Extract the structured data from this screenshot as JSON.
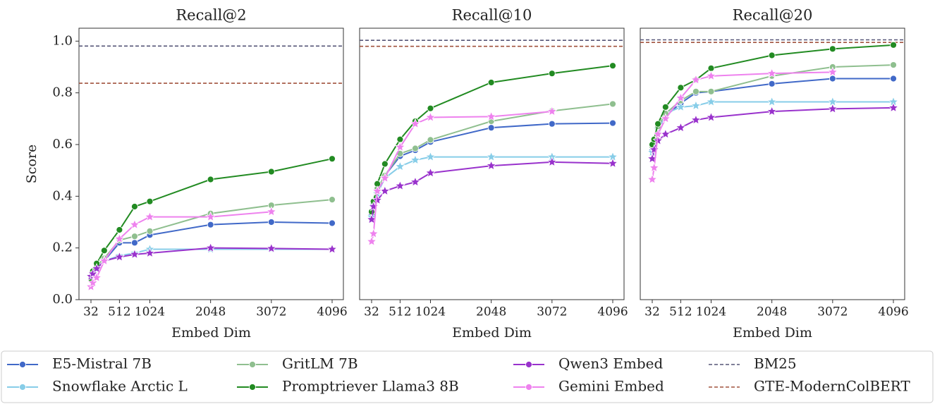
{
  "chart_data": [
    {
      "type": "line",
      "title": "Recall@2",
      "xlabel": "Embed Dim",
      "ylabel": "Score",
      "x": [
        32,
        64,
        128,
        256,
        512,
        768,
        1024,
        2048,
        3072,
        4096
      ],
      "xlim": [
        -170,
        4286
      ],
      "xticks": [
        32,
        512,
        1024,
        2048,
        3072,
        4096
      ],
      "ylim": [
        0,
        1.05
      ],
      "yticks": [
        {
          "value": 0,
          "label": "0.0"
        },
        0.2,
        0.4,
        0.6,
        0.8,
        {
          "value": 1,
          "label": "1.0"
        }
      ],
      "series": [
        {
          "name": "E5-Mistral 7B",
          "color": "#4169c8",
          "marker": "circle",
          "values": [
            0.08,
            0.1,
            0.12,
            0.15,
            0.22,
            0.22,
            0.25,
            0.29,
            0.3,
            0.296
          ]
        },
        {
          "name": "Snowflake Arctic L",
          "color": "#87cde8",
          "marker": "star",
          "values": [
            0.09,
            0.1,
            0.12,
            0.15,
            0.17,
            0.18,
            0.195,
            0.195,
            0.195,
            0.195
          ]
        },
        {
          "name": "GritLM 7B",
          "color": "#8fbf8f",
          "marker": "circle",
          "values": [
            0.08,
            0.1,
            0.13,
            0.16,
            0.23,
            0.245,
            0.265,
            0.333,
            0.365,
            0.387
          ]
        },
        {
          "name": "Promptriever Llama3 8B",
          "color": "#228b22",
          "marker": "circle",
          "values": [
            0.08,
            0.11,
            0.14,
            0.19,
            0.27,
            0.36,
            0.38,
            0.465,
            0.495,
            0.545
          ]
        },
        {
          "name": "Qwen3 Embed",
          "color": "#9932cc",
          "marker": "star",
          "values": [
            0.09,
            0.1,
            0.12,
            0.15,
            0.165,
            0.175,
            0.18,
            0.2,
            0.198,
            0.195
          ]
        },
        {
          "name": "Gemini Embed",
          "color": "#ee82ee",
          "marker": "star",
          "values": [
            0.05,
            0.065,
            0.085,
            0.15,
            0.235,
            0.29,
            0.32,
            0.32,
            0.34,
            null
          ]
        }
      ],
      "reference_lines": [
        {
          "name": "BM25",
          "color": "#555577",
          "value": 0.981
        },
        {
          "name": "GTE-ModernColBERT",
          "color": "#a0523d",
          "value": 0.837
        }
      ]
    },
    {
      "type": "line",
      "title": "Recall@10",
      "xlabel": "Embed Dim",
      "x": [
        32,
        64,
        128,
        256,
        512,
        768,
        1024,
        2048,
        3072,
        4096
      ],
      "xlim": [
        -170,
        4286
      ],
      "xticks": [
        32,
        512,
        1024,
        2048,
        3072,
        4096
      ],
      "ylim": [
        0,
        1.05
      ],
      "series": [
        {
          "name": "E5-Mistral 7B",
          "color": "#4169c8",
          "marker": "circle",
          "values": [
            0.33,
            0.37,
            0.42,
            0.48,
            0.555,
            0.578,
            0.61,
            0.665,
            0.68,
            0.683
          ]
        },
        {
          "name": "Snowflake Arctic L",
          "color": "#87cde8",
          "marker": "star",
          "values": [
            0.32,
            0.36,
            0.41,
            0.47,
            0.515,
            0.54,
            0.552,
            0.552,
            0.552,
            0.552
          ]
        },
        {
          "name": "GritLM 7B",
          "color": "#8fbf8f",
          "marker": "circle",
          "values": [
            0.34,
            0.38,
            0.43,
            0.48,
            0.565,
            0.585,
            0.618,
            0.69,
            0.73,
            0.757
          ]
        },
        {
          "name": "Promptriever Llama3 8B",
          "color": "#228b22",
          "marker": "circle",
          "values": [
            0.34,
            0.38,
            0.448,
            0.525,
            0.62,
            0.69,
            0.74,
            0.84,
            0.875,
            0.905
          ]
        },
        {
          "name": "Qwen3 Embed",
          "color": "#9932cc",
          "marker": "star",
          "values": [
            0.31,
            0.36,
            0.385,
            0.42,
            0.44,
            0.455,
            0.49,
            0.518,
            0.532,
            0.527
          ]
        },
        {
          "name": "Gemini Embed",
          "color": "#ee82ee",
          "marker": "star",
          "values": [
            0.225,
            0.255,
            0.42,
            0.47,
            0.59,
            0.68,
            0.705,
            0.708,
            0.728,
            null
          ]
        }
      ],
      "reference_lines": [
        {
          "name": "BM25",
          "color": "#555577",
          "value": 1.003
        },
        {
          "name": "GTE-ModernColBERT",
          "color": "#a0523d",
          "value": 0.98
        }
      ]
    },
    {
      "type": "line",
      "title": "Recall@20",
      "xlabel": "Embed Dim",
      "x": [
        32,
        64,
        128,
        256,
        512,
        768,
        1024,
        2048,
        3072,
        4096
      ],
      "xlim": [
        -170,
        4286
      ],
      "xticks": [
        32,
        512,
        1024,
        2048,
        3072,
        4096
      ],
      "ylim": [
        0,
        1.05
      ],
      "series": [
        {
          "name": "E5-Mistral 7B",
          "color": "#4169c8",
          "marker": "circle",
          "values": [
            0.58,
            0.6,
            0.66,
            0.71,
            0.76,
            0.8,
            0.805,
            0.835,
            0.855,
            0.855
          ]
        },
        {
          "name": "Snowflake Arctic L",
          "color": "#87cde8",
          "marker": "star",
          "values": [
            0.57,
            0.6,
            0.66,
            0.72,
            0.745,
            0.75,
            0.765,
            0.765,
            0.765,
            0.765
          ]
        },
        {
          "name": "GritLM 7B",
          "color": "#8fbf8f",
          "marker": "circle",
          "values": [
            0.59,
            0.61,
            0.67,
            0.72,
            0.77,
            0.805,
            0.805,
            0.865,
            0.9,
            0.908
          ]
        },
        {
          "name": "Promptriever Llama3 8B",
          "color": "#228b22",
          "marker": "circle",
          "values": [
            0.6,
            0.62,
            0.68,
            0.745,
            0.82,
            0.85,
            0.895,
            0.945,
            0.97,
            0.985
          ]
        },
        {
          "name": "Qwen3 Embed",
          "color": "#9932cc",
          "marker": "star",
          "values": [
            0.545,
            0.58,
            0.615,
            0.64,
            0.665,
            0.695,
            0.705,
            0.728,
            0.738,
            0.742
          ]
        },
        {
          "name": "Gemini Embed",
          "color": "#ee82ee",
          "marker": "star",
          "values": [
            0.465,
            0.51,
            0.64,
            0.7,
            0.78,
            0.85,
            0.865,
            0.875,
            0.88,
            null
          ]
        }
      ],
      "reference_lines": [
        {
          "name": "BM25",
          "color": "#555577",
          "value": 1.005
        },
        {
          "name": "GTE-ModernColBERT",
          "color": "#a0523d",
          "value": 0.995
        }
      ]
    }
  ]
}
